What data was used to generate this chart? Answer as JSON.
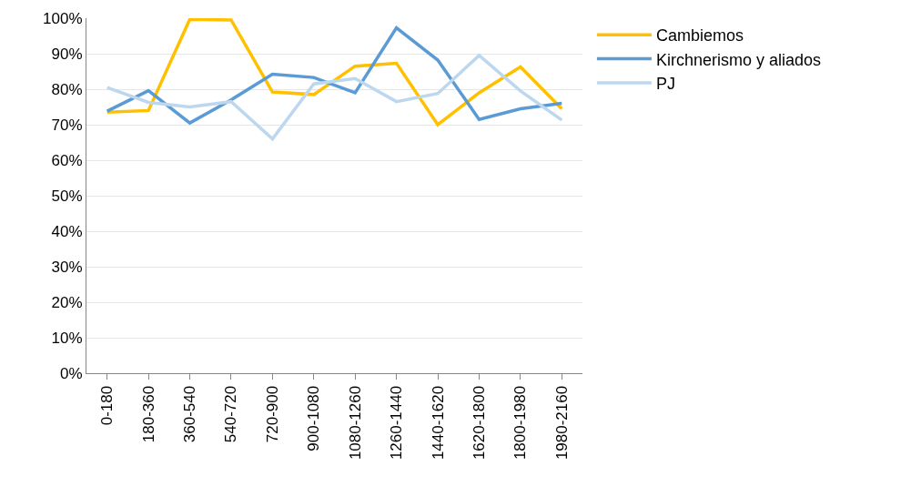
{
  "chart_data": {
    "type": "line",
    "categories": [
      "0-180",
      "180-360",
      "360-540",
      "540-720",
      "720-900",
      "900-1080",
      "1080-1260",
      "1260-1440",
      "1440-1620",
      "1620-1800",
      "1800-1980",
      "1980-2160"
    ],
    "series": [
      {
        "name": "Cambiemos",
        "color": "#ffc000",
        "values": [
          73.5,
          74,
          99.7,
          99.5,
          79.2,
          78.5,
          86.5,
          87.3,
          70,
          79,
          86.3,
          74.5
        ]
      },
      {
        "name": "Kirchnerismo y aliados",
        "color": "#5b9bd5",
        "values": [
          73.8,
          79.6,
          70.5,
          77,
          84.2,
          83.3,
          79,
          97.3,
          88.2,
          71.5,
          74.5,
          76
        ]
      },
      {
        "name": "PJ",
        "color": "#bdd7ee",
        "values": [
          80.5,
          76.3,
          75,
          76.5,
          66,
          81.5,
          83,
          76.5,
          78.8,
          89.5,
          79.5,
          71.3
        ]
      }
    ],
    "ylim": [
      0,
      100
    ],
    "yticks": [
      {
        "value": 0,
        "label": "0%"
      },
      {
        "value": 10,
        "label": "10%"
      },
      {
        "value": 20,
        "label": "20%"
      },
      {
        "value": 30,
        "label": "30%"
      },
      {
        "value": 40,
        "label": "40%"
      },
      {
        "value": 50,
        "label": "50%"
      },
      {
        "value": 60,
        "label": "60%"
      },
      {
        "value": 70,
        "label": "70%"
      },
      {
        "value": 80,
        "label": "80%"
      },
      {
        "value": 90,
        "label": "90%"
      },
      {
        "value": 100,
        "label": "100%"
      }
    ],
    "grid": "y",
    "legend": "top right",
    "marker": "none",
    "line_style": "solid"
  }
}
